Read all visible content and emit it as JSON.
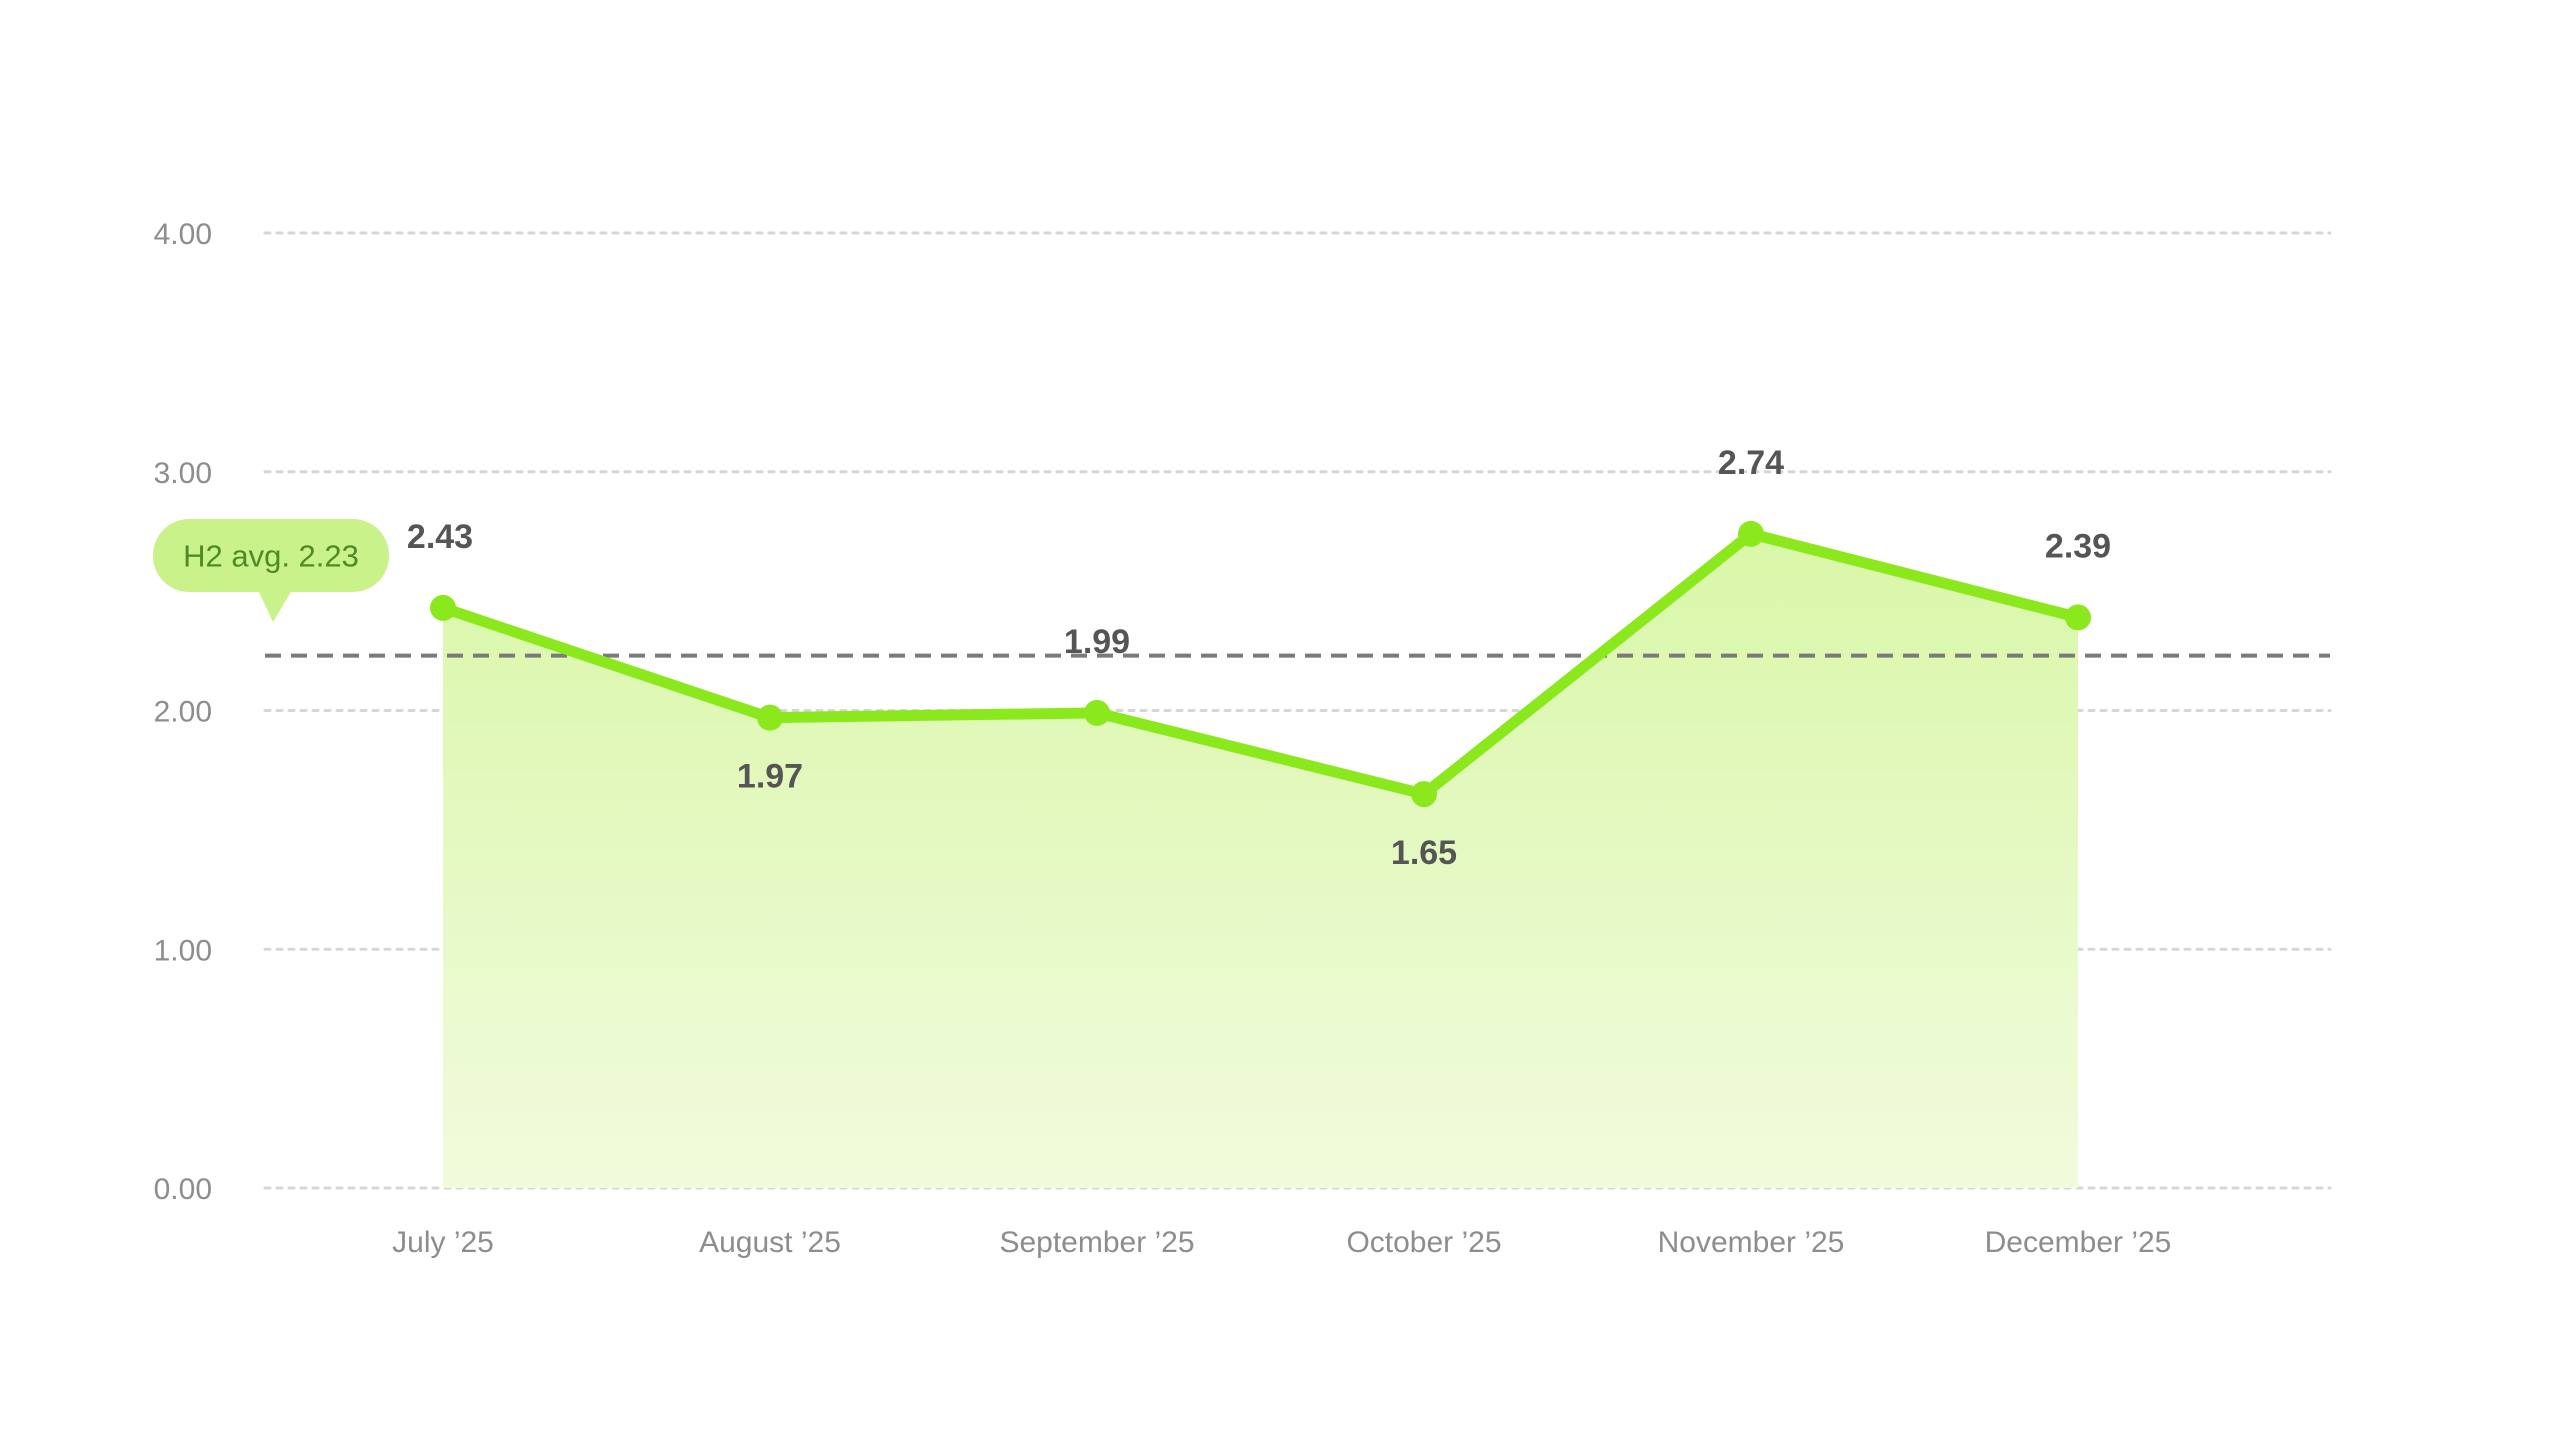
{
  "chart_data": {
    "type": "area",
    "categories": [
      "July ’25",
      "August ’25",
      "September ’25",
      "October ’25",
      "November ’25",
      "December ’25"
    ],
    "series": [
      {
        "values": [
          2.43,
          1.97,
          1.99,
          1.65,
          2.74,
          2.39
        ],
        "data_labels": [
          "2.43",
          "1.97",
          "1.99",
          "1.65",
          "2.74",
          "2.39"
        ]
      }
    ],
    "yticks": [
      0,
      1,
      2,
      3,
      4
    ],
    "ytick_labels": [
      "0.00",
      "1.00",
      "2.00",
      "3.00",
      "4.00"
    ],
    "ylim": [
      0,
      4
    ],
    "grid": true,
    "reference_line": {
      "value": 2.23,
      "label": "H2 avg. 2.23",
      "style": "dashed"
    },
    "colors": {
      "line": "#8be81d",
      "area_top": "#d9f7a8",
      "area_bottom": "#f1fbdd",
      "grid": "#d6d6d6",
      "reference_line": "#7a7a7a",
      "badge_fill": "#c9f28b",
      "badge_text": "#4f8a24"
    }
  }
}
